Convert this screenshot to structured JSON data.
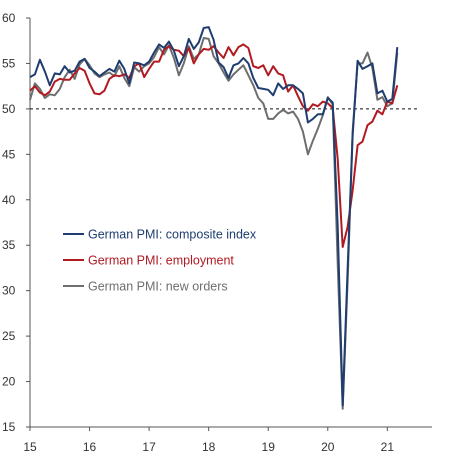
{
  "chart_data": {
    "type": "line",
    "title": "",
    "xlabel": "",
    "ylabel": "",
    "ylim": [
      15,
      60
    ],
    "yticks": [
      15,
      20,
      25,
      30,
      35,
      40,
      45,
      50,
      55,
      60
    ],
    "xlim": [
      15.0,
      21.75
    ],
    "xticks": [
      "15",
      "16",
      "17",
      "18",
      "19",
      "20",
      "21"
    ],
    "reference_line": {
      "y": 50,
      "style": "dashed"
    },
    "grid": false,
    "legend_position": "center-left",
    "series": [
      {
        "name": "German PMI: composite index",
        "color": "#1f3d6e",
        "x": [
          15.0,
          15.083,
          15.167,
          15.25,
          15.333,
          15.417,
          15.5,
          15.583,
          15.667,
          15.75,
          15.833,
          15.917,
          16.0,
          16.083,
          16.167,
          16.25,
          16.333,
          16.417,
          16.5,
          16.583,
          16.667,
          16.75,
          16.833,
          16.917,
          17.0,
          17.083,
          17.167,
          17.25,
          17.333,
          17.417,
          17.5,
          17.583,
          17.667,
          17.75,
          17.833,
          17.917,
          18.0,
          18.083,
          18.167,
          18.25,
          18.333,
          18.417,
          18.5,
          18.583,
          18.667,
          18.75,
          18.833,
          18.917,
          19.0,
          19.083,
          19.167,
          19.25,
          19.333,
          19.417,
          19.5,
          19.583,
          19.667,
          19.75,
          19.833,
          19.917,
          20.0,
          20.083,
          20.167,
          20.25,
          20.333,
          20.417,
          20.5,
          20.583,
          20.667,
          20.75,
          20.833,
          20.917,
          21.0,
          21.083,
          21.167
        ],
        "values": [
          53.5,
          53.8,
          55.4,
          54.1,
          52.6,
          53.9,
          53.8,
          54.7,
          54.0,
          54.2,
          55.2,
          55.5,
          54.5,
          54.1,
          53.6,
          54.0,
          54.4,
          54.1,
          55.3,
          54.4,
          52.8,
          55.1,
          55.0,
          54.8,
          55.2,
          56.2,
          57.1,
          56.7,
          57.4,
          56.4,
          54.7,
          55.8,
          57.7,
          56.6,
          57.3,
          58.9,
          59.0,
          57.6,
          55.1,
          54.6,
          53.4,
          54.8,
          55.0,
          55.6,
          55.0,
          53.4,
          52.3,
          52.2,
          52.1,
          51.5,
          52.8,
          52.2,
          52.6,
          52.6,
          52.2,
          51.7,
          48.5,
          48.9,
          49.4,
          49.4,
          51.2,
          50.7,
          37.0,
          17.4,
          32.3,
          47.0,
          55.3,
          54.4,
          54.7,
          55.0,
          51.7,
          52.0,
          50.8,
          51.1,
          56.8
        ]
      },
      {
        "name": "German PMI: employment",
        "color": "#b11a21",
        "x": [
          15.0,
          15.083,
          15.167,
          15.25,
          15.333,
          15.417,
          15.5,
          15.583,
          15.667,
          15.75,
          15.833,
          15.917,
          16.0,
          16.083,
          16.167,
          16.25,
          16.333,
          16.417,
          16.5,
          16.583,
          16.667,
          16.75,
          16.833,
          16.917,
          17.0,
          17.083,
          17.167,
          17.25,
          17.333,
          17.417,
          17.5,
          17.583,
          17.667,
          17.75,
          17.833,
          17.917,
          18.0,
          18.083,
          18.167,
          18.25,
          18.333,
          18.417,
          18.5,
          18.583,
          18.667,
          18.75,
          18.833,
          18.917,
          19.0,
          19.083,
          19.167,
          19.25,
          19.333,
          19.417,
          19.5,
          19.583,
          19.667,
          19.75,
          19.833,
          19.917,
          20.0,
          20.083,
          20.167,
          20.25,
          20.333,
          20.417,
          20.5,
          20.583,
          20.667,
          20.75,
          20.833,
          20.917,
          21.0,
          21.083,
          21.167
        ],
        "values": [
          52.0,
          52.5,
          51.8,
          51.5,
          51.9,
          53.0,
          53.3,
          53.2,
          53.2,
          53.9,
          54.5,
          54.2,
          52.8,
          51.7,
          51.6,
          52.0,
          53.3,
          53.7,
          53.6,
          53.8,
          53.4,
          54.7,
          55.0,
          53.5,
          54.4,
          55.2,
          55.2,
          56.5,
          56.9,
          56.5,
          56.4,
          55.8,
          56.7,
          55.0,
          56.0,
          56.6,
          56.5,
          56.9,
          56.2,
          55.6,
          56.8,
          55.9,
          56.8,
          57.1,
          56.7,
          54.7,
          54.5,
          54.8,
          53.7,
          54.7,
          53.9,
          53.7,
          51.9,
          52.6,
          51.4,
          50.3,
          49.8,
          50.5,
          50.3,
          50.8,
          50.6,
          50.1,
          44.5,
          34.8,
          37.0,
          41.0,
          46.0,
          46.4,
          48.2,
          48.6,
          49.8,
          49.4,
          50.8,
          50.6,
          52.6
        ]
      },
      {
        "name": "German PMI: new orders",
        "color": "#6e6e6e",
        "x": [
          15.0,
          15.083,
          15.167,
          15.25,
          15.333,
          15.417,
          15.5,
          15.583,
          15.667,
          15.75,
          15.833,
          15.917,
          16.0,
          16.083,
          16.167,
          16.25,
          16.333,
          16.417,
          16.5,
          16.583,
          16.667,
          16.75,
          16.833,
          16.917,
          17.0,
          17.083,
          17.167,
          17.25,
          17.333,
          17.417,
          17.5,
          17.583,
          17.667,
          17.75,
          17.833,
          17.917,
          18.0,
          18.083,
          18.167,
          18.25,
          18.333,
          18.417,
          18.5,
          18.583,
          18.667,
          18.75,
          18.833,
          18.917,
          19.0,
          19.083,
          19.167,
          19.25,
          19.333,
          19.417,
          19.5,
          19.583,
          19.667,
          19.75,
          19.833,
          19.917,
          20.0,
          20.083,
          20.167,
          20.25,
          20.333,
          20.417,
          20.5,
          20.583,
          20.667,
          20.75,
          20.833,
          20.917,
          21.0,
          21.083,
          21.167
        ],
        "values": [
          51.0,
          52.8,
          52.2,
          51.2,
          51.6,
          51.5,
          52.2,
          53.5,
          54.3,
          53.3,
          54.9,
          55.5,
          54.8,
          53.9,
          53.5,
          53.8,
          54.0,
          53.6,
          54.7,
          53.4,
          52.5,
          54.6,
          54.1,
          54.7,
          55.0,
          55.7,
          56.8,
          56.0,
          57.0,
          55.6,
          53.7,
          55.0,
          56.9,
          55.5,
          56.0,
          57.8,
          57.7,
          55.8,
          55.0,
          54.0,
          53.1,
          53.8,
          54.3,
          54.8,
          53.7,
          52.6,
          51.2,
          50.6,
          48.9,
          48.9,
          49.5,
          49.9,
          49.5,
          49.7,
          48.9,
          47.5,
          45.0,
          46.5,
          47.8,
          49.3,
          51.3,
          50.5,
          33.0,
          17.0,
          31.0,
          47.5,
          55.0,
          55.0,
          56.2,
          54.5,
          51.0,
          51.3,
          50.3,
          50.6,
          56.2
        ]
      }
    ]
  }
}
